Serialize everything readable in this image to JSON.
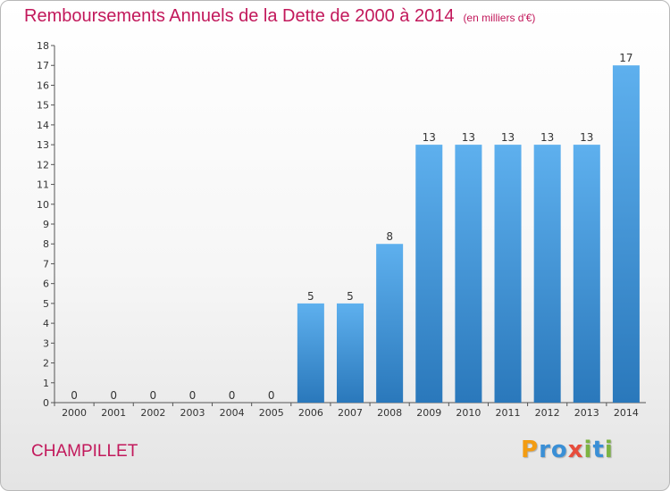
{
  "header": {
    "title": "Remboursements Annuels de la Dette de 2000 à 2014",
    "unit": "(en milliers d'€)"
  },
  "footer": {
    "commune": "CHAMPILLET",
    "logo": [
      "P",
      "r",
      "o",
      "x",
      "i",
      "t",
      "i"
    ],
    "logo_colors": [
      "#f39c12",
      "#3a8fd6",
      "#3a8fd6",
      "#e74c3c",
      "#7cb342",
      "#3a8fd6",
      "#7cb342"
    ]
  },
  "colors": {
    "bar_top": "#5eb0ee",
    "bar_bottom": "#2a78bb",
    "accent": "#c2185b"
  },
  "chart_data": {
    "type": "bar",
    "categories": [
      "2000",
      "2001",
      "2002",
      "2003",
      "2004",
      "2005",
      "2006",
      "2007",
      "2008",
      "2009",
      "2010",
      "2011",
      "2012",
      "2013",
      "2014"
    ],
    "values": [
      0,
      0,
      0,
      0,
      0,
      0,
      5,
      5,
      8,
      13,
      13,
      13,
      13,
      13,
      17
    ],
    "yticks": [
      "0",
      "1",
      "2",
      "3",
      "4",
      "5",
      "6",
      "7",
      "8",
      "9",
      "10",
      "11",
      "12",
      "13",
      "14",
      "15",
      "16",
      "17",
      "18"
    ],
    "ylim": [
      0,
      18
    ],
    "xlabel": "",
    "ylabel": "",
    "grid": false,
    "legend": "none"
  }
}
